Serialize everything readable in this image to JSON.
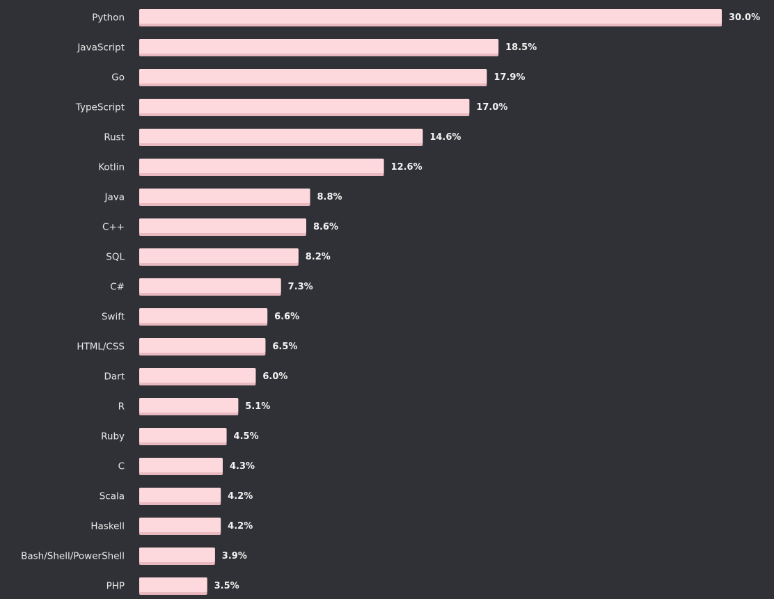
{
  "colors": {
    "background": "#2f3136",
    "bar": "#fdd9dd",
    "bar_shadow": "#e9b9bf",
    "text": "#e8e8e8"
  },
  "chart_data": {
    "type": "bar",
    "orientation": "horizontal",
    "title": "",
    "xlabel": "",
    "ylabel": "",
    "value_suffix": "%",
    "grid": false,
    "legend": "none",
    "xlim": [
      0,
      30
    ],
    "categories": [
      "Python",
      "JavaScript",
      "Go",
      "TypeScript",
      "Rust",
      "Kotlin",
      "Java",
      "C++",
      "SQL",
      "C#",
      "Swift",
      "HTML/CSS",
      "Dart",
      "R",
      "Ruby",
      "C",
      "Scala",
      "Haskell",
      "Bash/Shell/PowerShell",
      "PHP"
    ],
    "values": [
      30.0,
      18.5,
      17.9,
      17.0,
      14.6,
      12.6,
      8.8,
      8.6,
      8.2,
      7.3,
      6.6,
      6.5,
      6.0,
      5.1,
      4.5,
      4.3,
      4.2,
      4.2,
      3.9,
      3.5
    ],
    "value_labels": [
      "30.0%",
      "18.5%",
      "17.9%",
      "17.0%",
      "14.6%",
      "12.6%",
      "8.8%",
      "8.6%",
      "8.2%",
      "7.3%",
      "6.6%",
      "6.5%",
      "6.0%",
      "5.1%",
      "4.5%",
      "4.3%",
      "4.2%",
      "4.2%",
      "3.9%",
      "3.5%"
    ]
  }
}
